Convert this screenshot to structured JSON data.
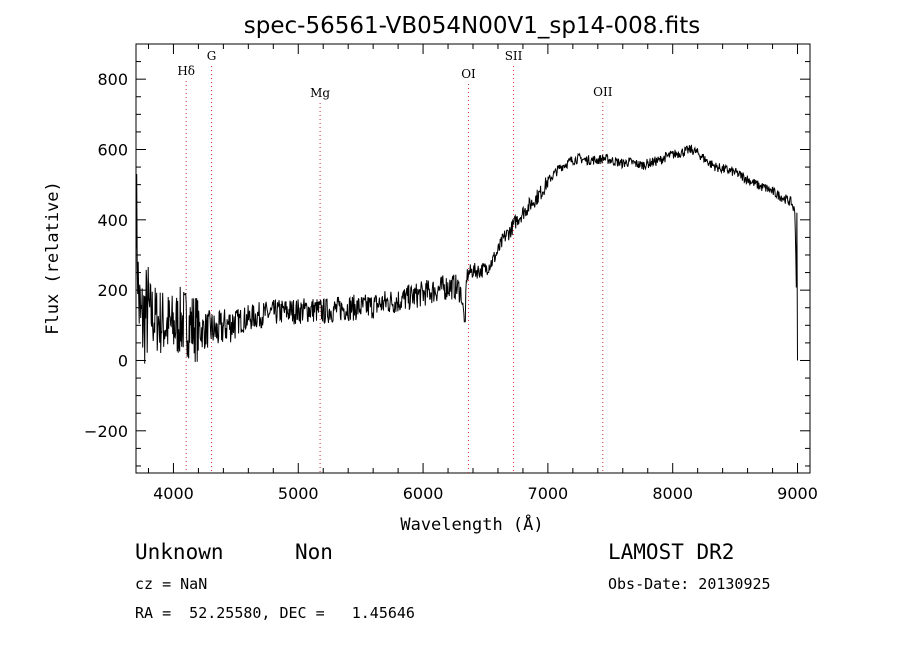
{
  "chart_data": {
    "type": "line",
    "title": "spec-56561-VB054N00V1_sp14-008.fits",
    "xlabel": "Wavelength (Å)",
    "ylabel": "Flux (relative)",
    "xlim": [
      3700,
      9100
    ],
    "ylim": [
      -320,
      900
    ],
    "x_ticks": [
      4000,
      5000,
      6000,
      7000,
      8000,
      9000
    ],
    "y_ticks": [
      -200,
      0,
      200,
      400,
      600,
      800
    ],
    "grid": false,
    "series": [
      {
        "x": [
          3700,
          3720,
          3740,
          3760,
          3780,
          3800,
          3850,
          3900,
          3950,
          4000,
          4050,
          4100,
          4150,
          4200,
          4250,
          4300,
          4350,
          4400,
          4500,
          4600,
          4700,
          4800,
          4900,
          5000,
          5100,
          5200,
          5300,
          5400,
          5500,
          5600,
          5700,
          5800,
          5900,
          6000,
          6100,
          6200,
          6250,
          6300,
          6330,
          6350,
          6370,
          6400,
          6450,
          6500,
          6550,
          6600,
          6650,
          6700,
          6750,
          6800,
          6850,
          6900,
          6950,
          7000,
          7050,
          7100,
          7150,
          7200,
          7250,
          7300,
          7350,
          7400,
          7450,
          7500,
          7550,
          7600,
          7650,
          7700,
          7750,
          7800,
          7850,
          7900,
          7950,
          8000,
          8050,
          8100,
          8150,
          8200,
          8250,
          8300,
          8350,
          8400,
          8450,
          8500,
          8550,
          8600,
          8650,
          8700,
          8750,
          8800,
          8850,
          8900,
          8950,
          8980,
          9000
        ],
        "y": [
          500,
          180,
          100,
          120,
          130,
          140,
          120,
          110,
          100,
          95,
          110,
          110,
          100,
          90,
          85,
          90,
          80,
          95,
          110,
          120,
          130,
          135,
          140,
          140,
          145,
          140,
          145,
          150,
          150,
          155,
          165,
          170,
          180,
          190,
          200,
          210,
          210,
          200,
          120,
          240,
          250,
          255,
          255,
          260,
          280,
          310,
          350,
          370,
          400,
          420,
          440,
          460,
          480,
          510,
          530,
          550,
          560,
          570,
          575,
          570,
          570,
          570,
          575,
          570,
          565,
          560,
          565,
          560,
          555,
          560,
          565,
          570,
          580,
          585,
          590,
          595,
          600,
          590,
          575,
          560,
          550,
          545,
          540,
          535,
          525,
          515,
          505,
          495,
          490,
          480,
          470,
          460,
          450,
          420,
          10
        ]
      }
    ],
    "lines": [
      {
        "label": "Hδ",
        "x": 4102
      },
      {
        "label": "G",
        "x": 4305
      },
      {
        "label": "Mg",
        "x": 5175
      },
      {
        "label": "OI",
        "x": 6364
      },
      {
        "label": "SII",
        "x": 6725
      },
      {
        "label": "OII",
        "x": 7440
      }
    ],
    "line_color": "#d03030",
    "trace_color": "#000000"
  },
  "info": {
    "class_label": "Unknown",
    "subclass_label": "Non",
    "survey": "LAMOST DR2",
    "cz_text": "cz = NaN",
    "obs_date": "Obs-Date: 20130925",
    "coords": "RA =  52.25580, DEC =   1.45646"
  }
}
